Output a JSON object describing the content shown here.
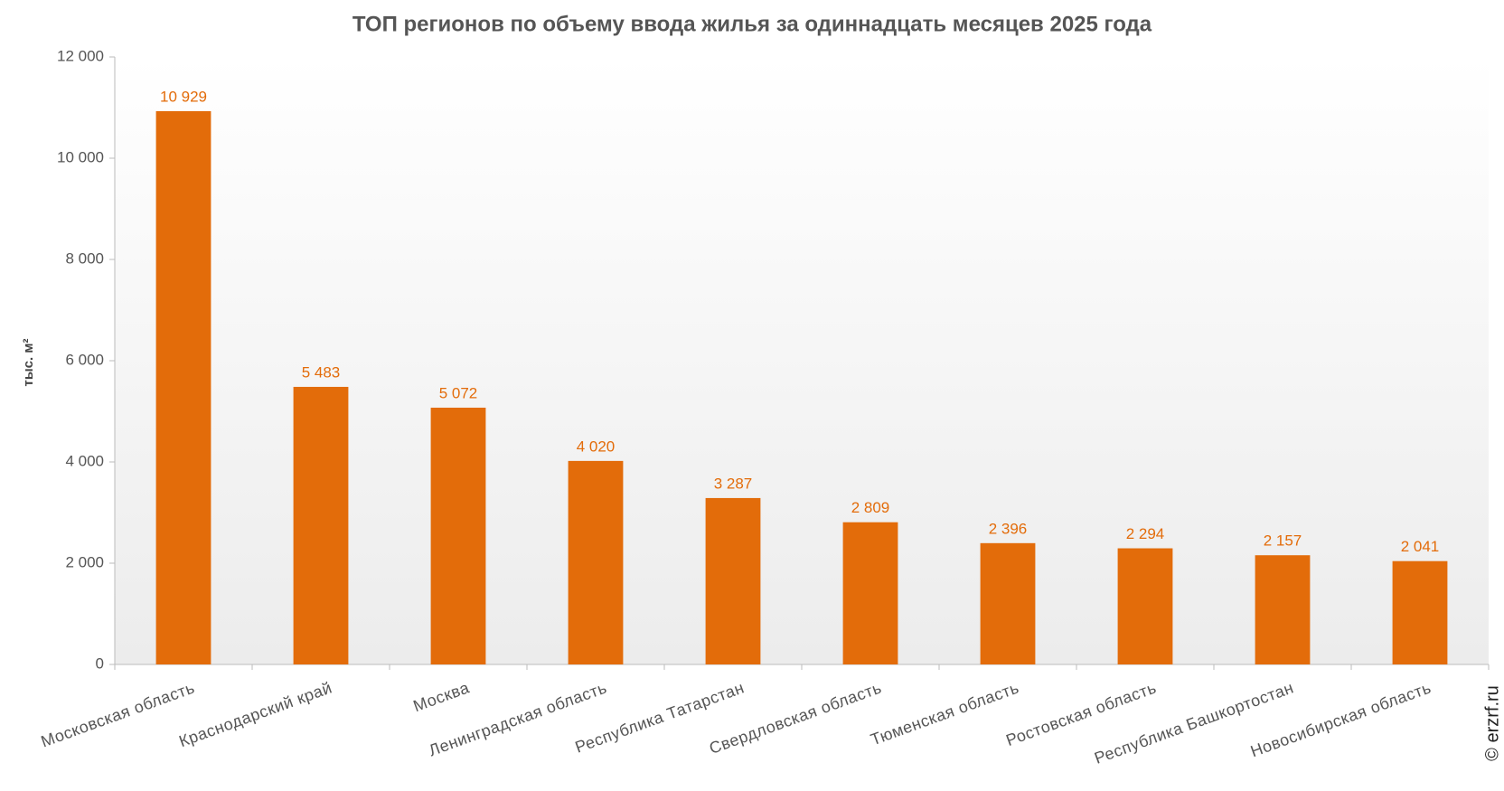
{
  "chart_data": {
    "type": "bar",
    "title": "ТОП регионов по объему ввода жилья за одиннадцать месяцев 2025 года",
    "y_label": "тыс. м²",
    "watermark": "© erzrf.ru",
    "categories": [
      "Московская область",
      "Краснодарский край",
      "Москва",
      "Ленинградская область",
      "Республика Татарстан",
      "Свердловская область",
      "Тюменская область",
      "Ростовская область",
      "Республика Башкортостан",
      "Новосибирская область"
    ],
    "values": [
      10929,
      5483,
      5072,
      4020,
      3287,
      2809,
      2396,
      2294,
      2157,
      2041
    ],
    "value_labels": [
      "10 929",
      "5 483",
      "5 072",
      "4 020",
      "3 287",
      "2 809",
      "2 396",
      "2 294",
      "2 157",
      "2 041"
    ],
    "color": "#e36c0a",
    "ylim": [
      0,
      12000
    ],
    "yticks": [
      0,
      {
        "value": 2000,
        "label": "2 000"
      },
      {
        "value": 4000,
        "label": "4 000"
      },
      {
        "value": 6000,
        "label": "6 000"
      },
      {
        "value": 8000,
        "label": "8 000"
      },
      {
        "value": 10000,
        "label": "10 000"
      },
      {
        "value": 12000,
        "label": "12 000"
      }
    ],
    "grid": false
  }
}
